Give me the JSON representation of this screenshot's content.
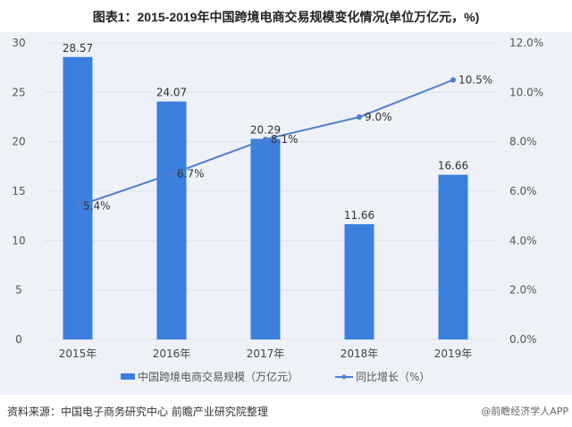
{
  "title": "图表1：2015-2019年中国跨境电商交易规模变化情况(单位万亿元，%)",
  "colors": {
    "bar": "#3b7fde",
    "line": "#4a7fd4",
    "background": "#eef1f8",
    "grid": "#dde2ec"
  },
  "chart_data": {
    "type": "bar+line",
    "title": "图表1：2015-2019年中国跨境电商交易规模变化情况(单位万亿元，%)",
    "categories": [
      "2015年",
      "2016年",
      "2017年",
      "2018年",
      "2019年"
    ],
    "series": [
      {
        "name": "中国跨境电商交易规模（万亿元）",
        "type": "bar",
        "axis": "left",
        "values": [
          28.57,
          24.07,
          20.29,
          11.66,
          16.66
        ],
        "labels": [
          "28.57",
          "24.07",
          "20.29",
          "11.66",
          "16.66"
        ]
      },
      {
        "name": "同比增长（%）",
        "type": "line",
        "axis": "right",
        "values": [
          5.4,
          6.7,
          8.1,
          9.0,
          10.5
        ],
        "labels": [
          "5.4%",
          "6.7%",
          "8.1%",
          "9.0%",
          "10.5%"
        ]
      }
    ],
    "left_axis": {
      "ylim": [
        0,
        30
      ],
      "ticks": [
        "0",
        "5",
        "10",
        "15",
        "20",
        "25",
        "30"
      ]
    },
    "right_axis": {
      "ylim": [
        0,
        12
      ],
      "ticks": [
        "0.0%",
        "2.0%",
        "4.0%",
        "6.0%",
        "8.0%",
        "10.0%",
        "12.0%"
      ]
    },
    "grid": true,
    "legend_position": "bottom"
  },
  "footer": {
    "source": "资料来源：中国电子商务研究中心 前瞻产业研究院整理",
    "credit": "@前瞻经济学人APP"
  }
}
